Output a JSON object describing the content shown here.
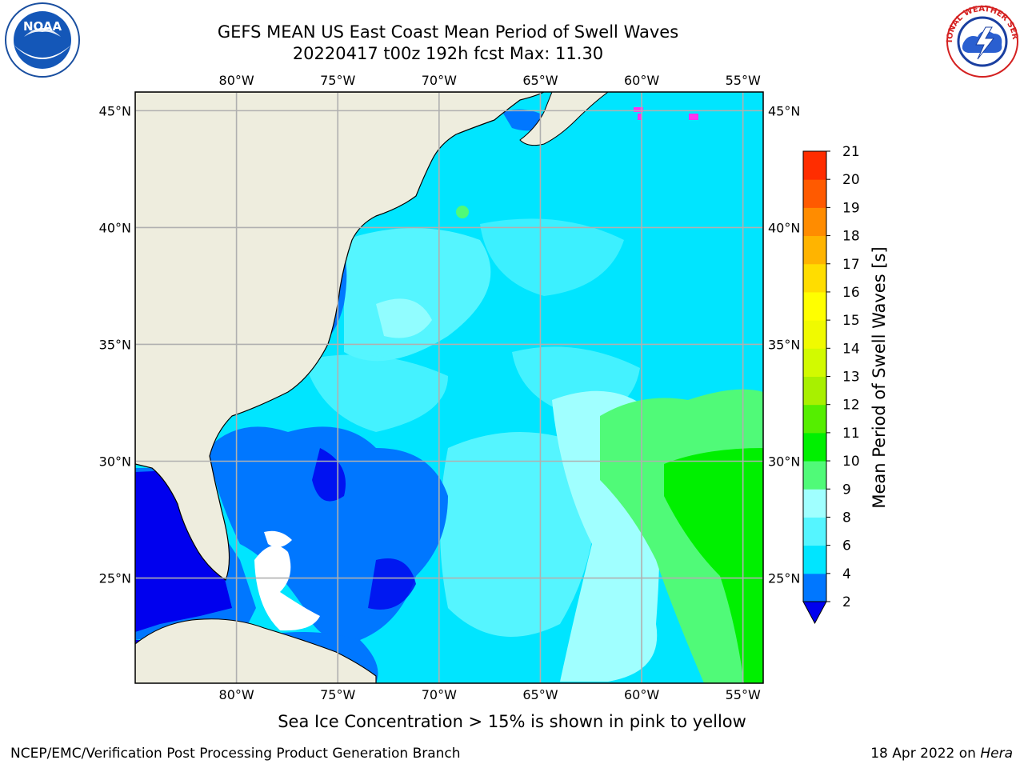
{
  "title": {
    "line1": "GEFS MEAN US East Coast Mean Period of Swell Waves",
    "line2": "20220417 t00z 192h fcst   Max: 11.30"
  },
  "logos": {
    "left": {
      "icon": "noaa-logo",
      "text": "NOAA"
    },
    "right": {
      "icon": "nws-logo",
      "text": "NATIONAL WEATHER SERVICE"
    }
  },
  "map": {
    "lon_range": [
      -85,
      -54
    ],
    "lat_range": [
      20.5,
      45.8
    ],
    "lon_ticks": [
      "80°W",
      "75°W",
      "70°W",
      "65°W",
      "60°W",
      "55°W"
    ],
    "lat_ticks": [
      "45°N",
      "40°N",
      "35°N",
      "30°N",
      "25°N"
    ],
    "grid": true,
    "land_color": "#eeedde"
  },
  "colorbar": {
    "label": "Mean Period of Swell Waves [s]",
    "ticks": [
      "2",
      "4",
      "6",
      "8",
      "9",
      "10",
      "11",
      "12",
      "13",
      "14",
      "15",
      "16",
      "17",
      "18",
      "19",
      "20",
      "21"
    ],
    "colors": [
      "#0077ff",
      "#00e5ff",
      "#55f5ff",
      "#a0ffff",
      "#50fa78",
      "#00f000",
      "#55ee00",
      "#a8f000",
      "#d2fa00",
      "#f0fa00",
      "#ffff00",
      "#ffdd00",
      "#ffb400",
      "#ff8c00",
      "#ff5a00",
      "#ff2d00",
      "#ff0000"
    ],
    "extend_color": "#0000ee"
  },
  "note": "Sea Ice Concentration > 15% is shown in pink to yellow",
  "footer": {
    "credit": "NCEP/EMC/Verification Post Processing Product Generation Branch",
    "date": "18 Apr 2022 on",
    "machine": "Hera"
  }
}
